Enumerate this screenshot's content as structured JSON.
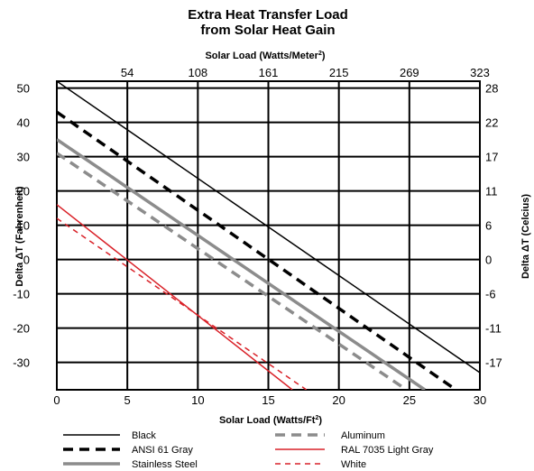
{
  "chart_data": {
    "type": "line",
    "title": "Extra Heat Transfer Load",
    "subtitle": "from Solar Heat Gain",
    "xlabel": "Solar Load (Watts/Ft",
    "xlabel_sup": "2",
    "xlabel_end": ")",
    "x2label": "Solar Load (Watts/Meter",
    "x2label_sup": "2",
    "x2label_end": ")",
    "ylabel": "Delta ΔT (Fahrenheit)",
    "y2label": "Delta ΔT (Celcius)",
    "xlim": [
      0,
      30
    ],
    "ylim": [
      -38,
      52
    ],
    "grid": true,
    "legend_position": "bottom",
    "x_ticks": [
      0,
      5,
      10,
      15,
      20,
      25,
      30
    ],
    "y_ticks": [
      50,
      40,
      30,
      20,
      10,
      0,
      -10,
      -20,
      -30
    ],
    "x2_ticks": [
      {
        "label": "54",
        "at": 5
      },
      {
        "label": "108",
        "at": 10
      },
      {
        "label": "161",
        "at": 15
      },
      {
        "label": "215",
        "at": 20
      },
      {
        "label": "269",
        "at": 25
      },
      {
        "label": "323",
        "at": 30
      }
    ],
    "y2_ticks": [
      {
        "label": "28",
        "at": 50
      },
      {
        "label": "22",
        "at": 40
      },
      {
        "label": "17",
        "at": 30
      },
      {
        "label": "11",
        "at": 20
      },
      {
        "label": "6",
        "at": 10
      },
      {
        "label": "0",
        "at": 0
      },
      {
        "label": "-6",
        "at": -10
      },
      {
        "label": "-11",
        "at": -20
      },
      {
        "label": "-17",
        "at": -30
      }
    ],
    "series": [
      {
        "name": "Black",
        "color": "#000000",
        "style": "solid",
        "width": 1.5,
        "x": [
          0,
          30
        ],
        "y": [
          52,
          -33
        ]
      },
      {
        "name": "ANSI 61 Gray",
        "color": "#000000",
        "style": "dashed",
        "width": 3.5,
        "x": [
          0,
          28.3
        ],
        "y": [
          43,
          -38
        ]
      },
      {
        "name": "Stainless Steel",
        "color": "#8c8c8c",
        "style": "solid",
        "width": 3.5,
        "x": [
          0,
          26.1
        ],
        "y": [
          35,
          -38
        ]
      },
      {
        "name": "Aluminum",
        "color": "#8c8c8c",
        "style": "dashed",
        "width": 3.5,
        "x": [
          0,
          24.8
        ],
        "y": [
          31,
          -38
        ]
      },
      {
        "name": "RAL 7035 Light Gray",
        "color": "#d92128",
        "style": "solid",
        "width": 1.5,
        "x": [
          0,
          16.7
        ],
        "y": [
          16,
          -38
        ]
      },
      {
        "name": "White",
        "color": "#d92128",
        "style": "dashed",
        "width": 1.5,
        "x": [
          0,
          17.7
        ],
        "y": [
          12,
          -38
        ]
      }
    ]
  },
  "legend": {
    "col1": [
      "Black",
      "ANSI 61 Gray",
      "Stainless Steel"
    ],
    "col2": [
      "Aluminum",
      "RAL 7035 Light Gray",
      "White"
    ]
  }
}
